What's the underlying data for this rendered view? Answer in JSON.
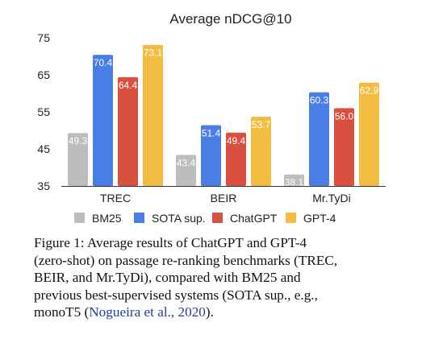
{
  "chart_data": {
    "type": "bar",
    "title": "Average nDCG@10",
    "categories": [
      "TREC",
      "BEIR",
      "Mr.TyDi"
    ],
    "series": [
      {
        "name": "BM25",
        "color": "#bdbdbd",
        "values": [
          49.3,
          43.4,
          38.1
        ]
      },
      {
        "name": "SOTA sup.",
        "color": "#4a7ee6",
        "values": [
          70.4,
          51.4,
          60.3
        ]
      },
      {
        "name": "ChatGPT",
        "color": "#d9503f",
        "values": [
          64.4,
          49.4,
          56.0
        ]
      },
      {
        "name": "GPT-4",
        "color": "#f2bd42",
        "values": [
          73.1,
          53.7,
          62.9
        ]
      }
    ],
    "data_labels": [
      [
        "49.3",
        "43.4",
        "38.1"
      ],
      [
        "70.4",
        "51.4",
        "60.3"
      ],
      [
        "64.4",
        "49.4",
        "56.0"
      ],
      [
        "73.1",
        "53.7",
        "62.9"
      ]
    ],
    "ylim": [
      35,
      75
    ],
    "yticks": [
      35,
      45,
      55,
      65,
      75
    ],
    "grid": false,
    "legend": "bottom"
  },
  "caption": {
    "lines": [
      "Figure 1: Average results of ChatGPT and GPT-4",
      "(zero-shot) on passage re-ranking benchmarks (TREC,",
      "BEIR, and Mr.TyDi), compared with BM25 and",
      "previous best-supervised systems (SOTA sup., e.g.,"
    ],
    "last_line_prefix": "monoT5 (",
    "citation": "Nogueira et al., 2020",
    "last_line_suffix": ")."
  }
}
